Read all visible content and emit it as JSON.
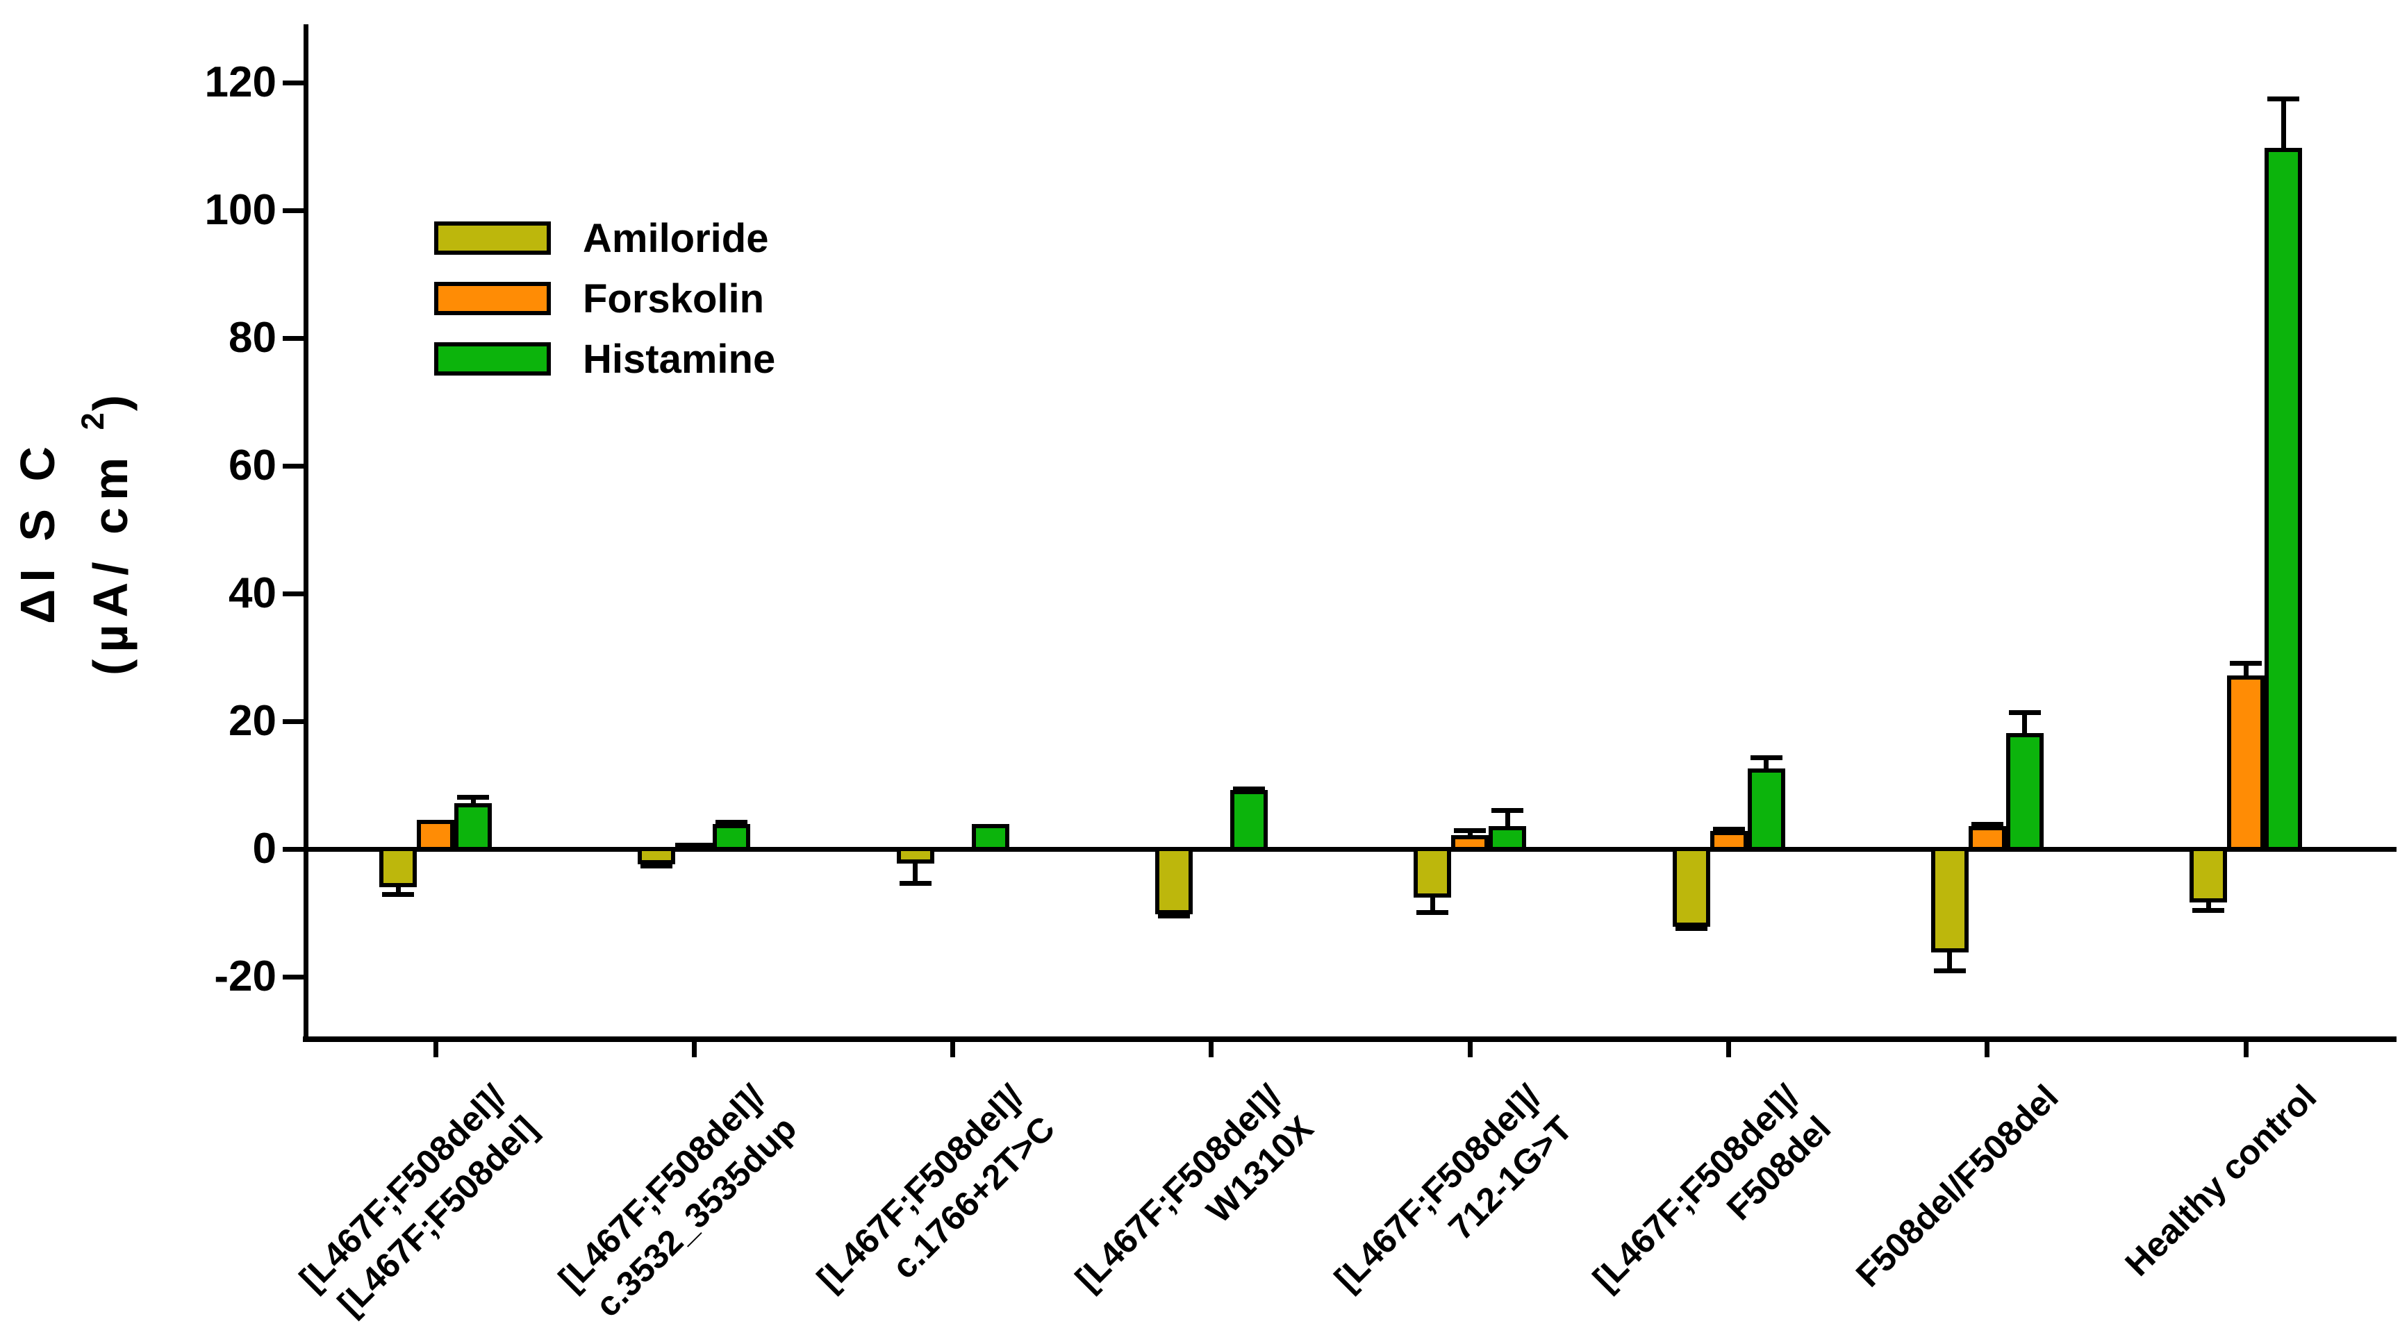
{
  "chart_data": {
    "type": "bar",
    "title": "",
    "ylabel_line1": "ΔI S C",
    "ylabel_line2_prefix": "(µA/ cm ",
    "ylabel_line2_sup": "2",
    "ylabel_line2_suffix": ")",
    "categories": [
      [
        "[L467F;F508del]/",
        "[L467F;F508del]"
      ],
      [
        "[L467F;F508del]/",
        "c.3532_3535dup"
      ],
      [
        "[L467F;F508del]/",
        "c.1766+2T>C"
      ],
      [
        "[L467F;F508del]/",
        "W1310X"
      ],
      [
        "[L467F;F508del]/",
        "712-1G>T"
      ],
      [
        "[L467F;F508del]/",
        "F508del"
      ],
      [
        "F508del/F508del"
      ],
      [
        "Healthy control"
      ]
    ],
    "series": [
      {
        "name": "Amiloride",
        "color": "#BDB70C",
        "values": [
          -5.7,
          -2.1,
          -2.0,
          -9.9,
          -7.3,
          -11.8,
          -15.9,
          -8.0
        ],
        "errors": [
          1.4,
          0.6,
          3.4,
          0.6,
          2.6,
          0.6,
          3.2,
          1.6
        ]
      },
      {
        "name": "Forskolin",
        "color": "#FF8C05",
        "values": [
          4.2,
          0.6,
          0,
          0,
          1.8,
          2.5,
          3.3,
          26.9
        ],
        "errors": [
          0,
          0,
          0,
          0,
          1.1,
          0.6,
          0.6,
          2.2
        ]
      },
      {
        "name": "Histamine",
        "color": "#0CB40C",
        "values": [
          6.8,
          3.6,
          3.6,
          8.9,
          3.3,
          12.3,
          17.8,
          109.5
        ],
        "errors": [
          1.3,
          0.6,
          0,
          0.5,
          2.7,
          2.0,
          3.6,
          8.0
        ]
      }
    ],
    "yticks": [
      -20,
      0,
      20,
      40,
      60,
      80,
      100,
      120
    ],
    "ylim": [
      -30,
      130
    ],
    "grid": false,
    "legend_position": "upper-left-inside",
    "error_bar_direction": "outward"
  }
}
